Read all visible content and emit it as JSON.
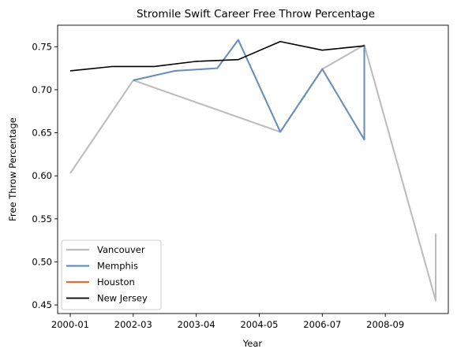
{
  "chart_data": {
    "type": "line",
    "title": "Stromile Swift Career Free Throw Percentage",
    "xlabel": "Year",
    "ylabel": "Free Throw Percentage",
    "x_ticks": [
      "2000-01",
      "2002-03",
      "2003-04",
      "2004-05",
      "2006-07",
      "2008-09"
    ],
    "x_range": [
      -0.3,
      9.0
    ],
    "y_ticks": [
      "0.45",
      "0.50",
      "0.55",
      "0.60",
      "0.65",
      "0.70",
      "0.75"
    ],
    "ylim": [
      0.44,
      0.775
    ],
    "grid": false,
    "legend": "lower-left",
    "series": [
      {
        "name": "Vancouver",
        "color": "#bdbdbd",
        "points": [
          [
            0,
            0.603
          ],
          [
            1.5,
            0.711
          ],
          [
            5,
            0.651
          ],
          [
            6,
            0.724
          ],
          [
            7,
            0.752
          ],
          [
            8.7,
            0.455
          ],
          [
            8.7,
            0.533
          ]
        ]
      },
      {
        "name": "Memphis",
        "color": "#6a8fba",
        "points": [
          [
            1.5,
            0.711
          ],
          [
            2.5,
            0.722
          ],
          [
            3.5,
            0.725
          ],
          [
            4,
            0.758
          ],
          [
            5,
            0.651
          ],
          [
            6,
            0.724
          ],
          [
            7,
            0.642
          ],
          [
            7,
            0.752
          ]
        ]
      },
      {
        "name": "Houston",
        "color": "#e0703a",
        "points": []
      },
      {
        "name": "New Jersey",
        "color": "#000000",
        "points": [
          [
            0,
            0.722
          ],
          [
            1,
            0.727
          ],
          [
            2,
            0.727
          ],
          [
            3,
            0.733
          ],
          [
            4,
            0.735
          ],
          [
            5,
            0.756
          ],
          [
            6,
            0.746
          ],
          [
            7,
            0.751
          ]
        ]
      }
    ]
  }
}
